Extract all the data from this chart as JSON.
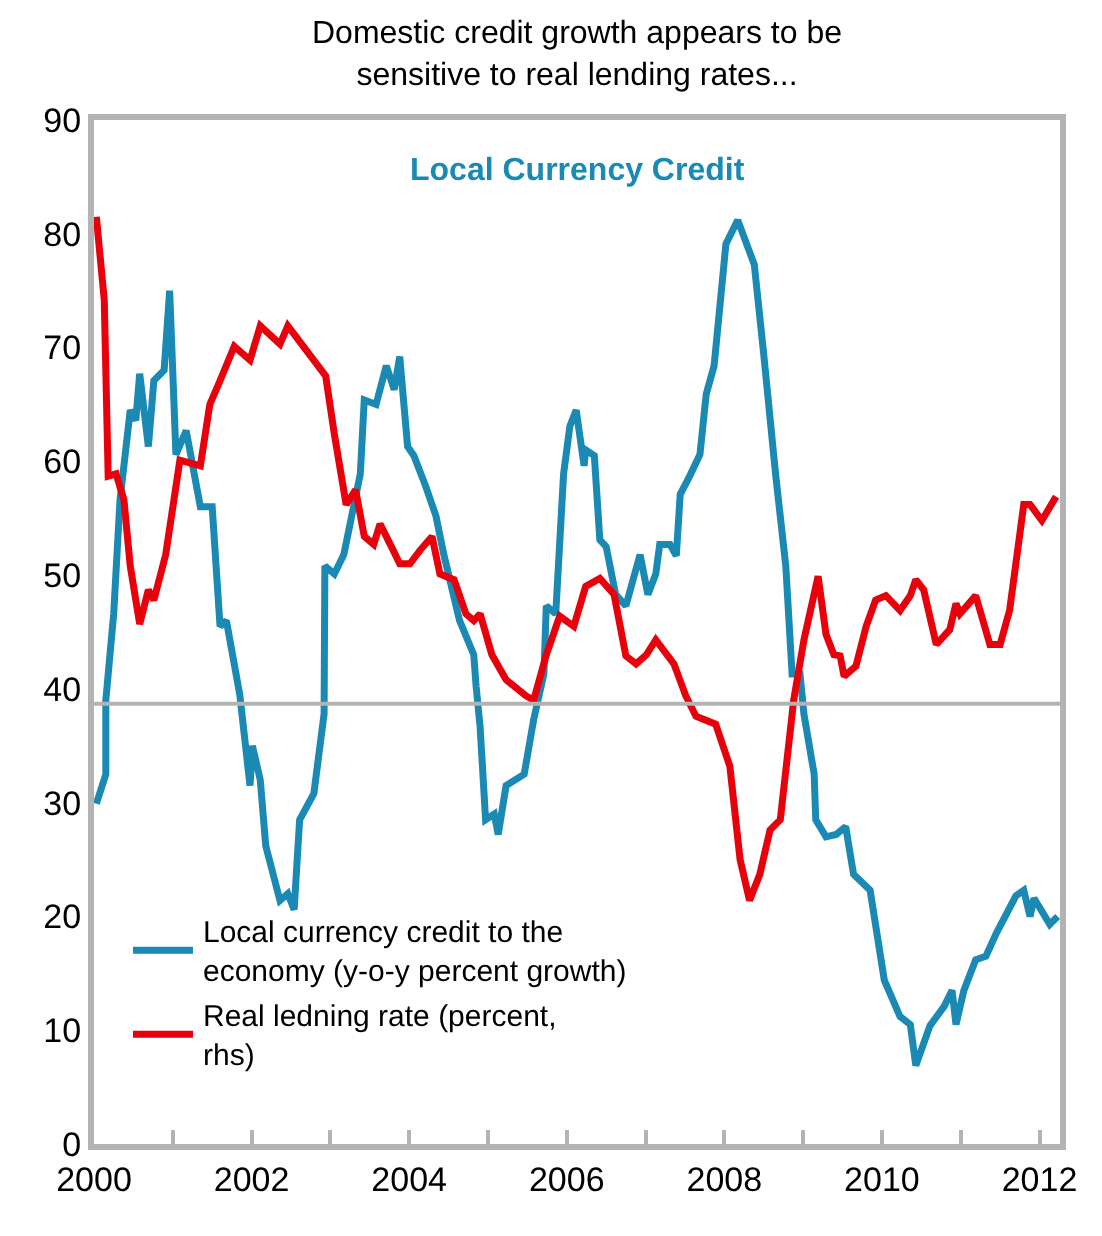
{
  "chart_data": {
    "type": "line",
    "title": "Domestic credit growth appears to be sensitive to real lending rates...",
    "annotations": [
      "Local Currency Credit"
    ],
    "xlim": [
      2000,
      2012.26
    ],
    "xticks": [
      2000,
      {
        "value": 2001,
        "label": null
      },
      2002,
      {
        "value": 2003,
        "label": null
      },
      2004,
      {
        "value": 2005,
        "label": null
      },
      2006,
      {
        "value": 2007,
        "label": null
      },
      2008,
      {
        "value": 2009,
        "label": null
      },
      2010,
      {
        "value": 2011,
        "label": null
      },
      2012
    ],
    "ylim": [
      0,
      90
    ],
    "yticks": [
      0,
      10,
      20,
      30,
      40,
      50,
      60,
      70,
      80,
      90
    ],
    "ref_lines": [
      {
        "axis": "y",
        "value": 38.7,
        "color": "#b3b3b3"
      }
    ],
    "grid": false,
    "legend": "bottom left",
    "marker": "none",
    "line_style": "solid",
    "series": [
      {
        "name": "Local currency credit to the economy (y-o-y percent growth)",
        "color": "#1a8ab5",
        "x": [
          2000.03,
          2000.15,
          2000.15,
          2000.25,
          2000.33,
          2000.46,
          2000.53,
          2000.58,
          2000.69,
          2000.76,
          2000.89,
          2000.96,
          2001.04,
          2001.17,
          2001.35,
          2001.5,
          2001.6,
          2001.68,
          2001.85,
          2001.98,
          2002.01,
          2002.11,
          2002.18,
          2002.36,
          2002.46,
          2002.54,
          2002.61,
          2002.79,
          2002.92,
          2002.93,
          2003.05,
          2003.17,
          2003.38,
          2003.43,
          2003.58,
          2003.71,
          2003.81,
          2003.88,
          2003.98,
          2004.06,
          2004.21,
          2004.34,
          2004.44,
          2004.64,
          2004.82,
          2004.85,
          2004.9,
          2004.97,
          2005.08,
          2005.13,
          2005.23,
          2005.46,
          2005.58,
          2005.71,
          2005.74,
          2005.86,
          2005.96,
          2006.04,
          2006.12,
          2006.22,
          2006.24,
          2006.35,
          2006.42,
          2006.5,
          2006.62,
          2006.75,
          2006.93,
          2007.03,
          2007.13,
          2007.18,
          2007.31,
          2007.39,
          2007.44,
          2007.56,
          2007.69,
          2007.77,
          2007.87,
          2008.02,
          2008.17,
          2008.38,
          2008.5,
          2008.65,
          2008.78,
          2008.86,
          2008.96,
          2009.01,
          2009.14,
          2009.16,
          2009.29,
          2009.42,
          2009.54,
          2009.64,
          2009.85,
          2010.03,
          2010.23,
          2010.36,
          2010.43,
          2010.61,
          2010.79,
          2010.89,
          2010.94,
          2011.04,
          2011.19,
          2011.32,
          2011.45,
          2011.7,
          2011.8,
          2011.88,
          2011.93,
          2012.13,
          2012.23
        ],
        "values": [
          29.9,
          32.5,
          39,
          46.6,
          56.6,
          64.5,
          63.6,
          67.7,
          61.3,
          67.1,
          68,
          75,
          60.6,
          62.7,
          56,
          56,
          45.5,
          46,
          39.5,
          31.5,
          35,
          32,
          26.2,
          21.4,
          22,
          20.6,
          28.5,
          30.8,
          37.8,
          50.8,
          50.1,
          51.8,
          58.9,
          65.4,
          65,
          68.4,
          66.3,
          69.2,
          61.3,
          60.5,
          57.8,
          55.2,
          51.8,
          46,
          43,
          40.2,
          36.7,
          28.5,
          29,
          27.2,
          31.5,
          32.5,
          37.3,
          41.3,
          47.3,
          46.6,
          58.9,
          63.1,
          64.5,
          59.6,
          61,
          60.5,
          53.1,
          52.5,
          48.3,
          47.3,
          51.8,
          48.3,
          50.1,
          52.7,
          52.7,
          51.7,
          57.1,
          58.7,
          60.6,
          65.9,
          68.4,
          79.1,
          81.2,
          77.3,
          69.4,
          58.9,
          50.8,
          41.3,
          41.3,
          37.8,
          32.5,
          28.5,
          27,
          27.2,
          27.9,
          23.7,
          22.3,
          14.4,
          11.2,
          10.5,
          6.9,
          10.4,
          12.1,
          13.5,
          10.5,
          13.5,
          16.2,
          16.5,
          18.5,
          21.8,
          22.3,
          20,
          21.6,
          19.3,
          20
        ]
      },
      {
        "name": "Real ledning rate (percent, rhs)",
        "color": "#e8000b",
        "x": [
          2000.03,
          2000.13,
          2000.18,
          2000.28,
          2000.38,
          2000.46,
          2000.58,
          2000.69,
          2000.76,
          2000.91,
          2001.09,
          2001.35,
          2001.47,
          2001.6,
          2001.78,
          2001.98,
          2002.11,
          2002.36,
          2002.46,
          2002.69,
          2002.94,
          2003.05,
          2003.2,
          2003.32,
          2003.43,
          2003.55,
          2003.63,
          2003.76,
          2003.88,
          2004.01,
          2004.14,
          2004.29,
          2004.39,
          2004.57,
          2004.72,
          2004.82,
          2004.9,
          2005.05,
          2005.23,
          2005.48,
          2005.58,
          2005.74,
          2005.91,
          2006.09,
          2006.24,
          2006.42,
          2006.6,
          2006.75,
          2006.88,
          2007.01,
          2007.13,
          2007.36,
          2007.51,
          2007.64,
          2007.89,
          2008.07,
          2008.2,
          2008.32,
          2008.45,
          2008.58,
          2008.71,
          2008.88,
          2009.01,
          2009.19,
          2009.29,
          2009.39,
          2009.47,
          2009.52,
          2009.67,
          2009.8,
          2009.92,
          2010.05,
          2010.23,
          2010.36,
          2010.43,
          2010.53,
          2010.69,
          2010.86,
          2010.94,
          2010.99,
          2011.19,
          2011.37,
          2011.5,
          2011.62,
          2011.8,
          2011.88,
          2012.03,
          2012.21
        ],
        "values": [
          81.5,
          74.2,
          58.7,
          58.9,
          56.6,
          50.8,
          45.7,
          48.7,
          47.8,
          51.8,
          60.1,
          59.6,
          65,
          67.1,
          70.1,
          68.9,
          71.9,
          70.3,
          71.9,
          69.8,
          67.5,
          62.4,
          56.2,
          57.5,
          53.4,
          52.7,
          54.5,
          52.7,
          51,
          51,
          52.2,
          53.4,
          50.1,
          49.6,
          46.6,
          46,
          46.6,
          43,
          40.8,
          39.4,
          39,
          43,
          46.4,
          45.5,
          49,
          49.7,
          48.3,
          42.9,
          42.2,
          43,
          44.3,
          42.2,
          39.4,
          37.6,
          36.9,
          33.2,
          25,
          21.4,
          23.7,
          27.6,
          28.5,
          39,
          44.3,
          49.9,
          44.8,
          43,
          42.9,
          41.1,
          42,
          45.5,
          47.8,
          48.2,
          46.9,
          48.2,
          49.6,
          48.7,
          43.9,
          45.2,
          47.5,
          46.6,
          48.2,
          43.9,
          43.9,
          46.9,
          56.2,
          56.2,
          54.8,
          56.9
        ]
      }
    ]
  }
}
